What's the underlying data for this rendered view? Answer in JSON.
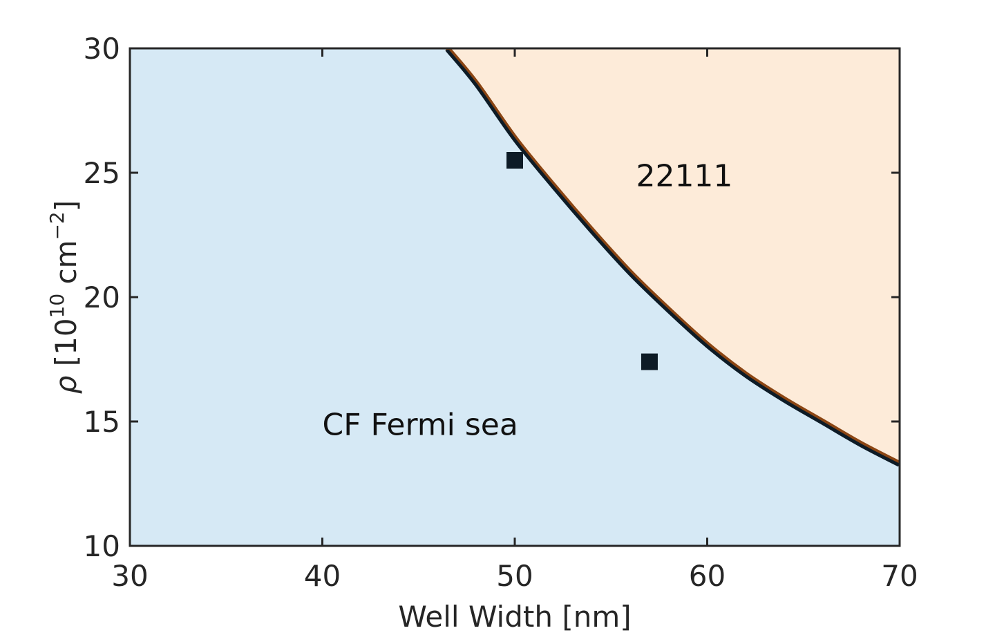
{
  "chart_data": {
    "type": "phase-diagram",
    "xlabel": "Well Width [nm]",
    "ylabel_symbol": "ρ",
    "ylabel_unit_base": " [10",
    "ylabel_unit_exp": "10",
    "ylabel_unit_mid": " cm",
    "ylabel_unit_exp2": "−2",
    "ylabel_unit_end": "]",
    "xlim": [
      30,
      70
    ],
    "ylim": [
      10,
      30
    ],
    "xticks": [
      30,
      40,
      50,
      60,
      70
    ],
    "xtick_labels": [
      "30",
      "40",
      "50",
      "60",
      "70"
    ],
    "yticks": [
      10,
      15,
      20,
      25,
      30
    ],
    "ytick_labels": [
      "10",
      "15",
      "20",
      "25",
      "30"
    ],
    "boundary": {
      "x": [
        46.5,
        48,
        50,
        52,
        54,
        56,
        58,
        60,
        62,
        64,
        66,
        68,
        70
      ],
      "y": [
        30,
        28.6,
        26.4,
        24.5,
        22.7,
        21.0,
        19.5,
        18.1,
        16.9,
        15.9,
        15.0,
        14.1,
        13.3
      ]
    },
    "points": [
      {
        "x": 50,
        "y": 25.5
      },
      {
        "x": 57,
        "y": 17.4
      }
    ],
    "regions": [
      {
        "label": "CF Fermi sea",
        "x": 40,
        "y": 14.9,
        "color": "#d6e9f5"
      },
      {
        "label": "22111",
        "x": 56.3,
        "y": 24.9,
        "color": "#fdebd9"
      }
    ],
    "grid": false,
    "colors": {
      "axis": "#262626",
      "boundary": "#0d1b26",
      "boundary_edge": "#8b4513",
      "marker": "#0d1b26"
    }
  }
}
